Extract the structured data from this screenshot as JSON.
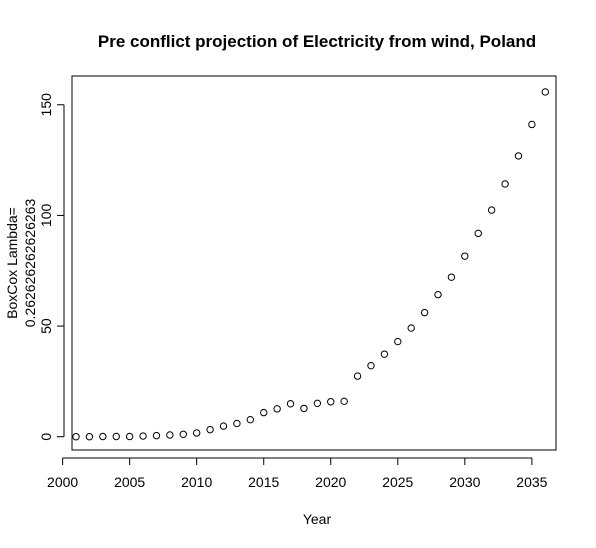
{
  "chart_data": {
    "type": "scatter",
    "title": "Pre conflict projection of Electricity from wind, Poland",
    "xlabel": "Year",
    "ylabel_lines": [
      "BoxCox Lambda=",
      "0.262626262626263"
    ],
    "xlim": [
      2000.7,
      2036.8
    ],
    "ylim": [
      -6,
      163
    ],
    "x_ticks": [
      2000,
      2005,
      2010,
      2015,
      2020,
      2025,
      2030,
      2035
    ],
    "y_ticks": [
      0,
      50,
      100,
      150
    ],
    "grid": false,
    "points": [
      {
        "x": 2001,
        "y": 0.0
      },
      {
        "x": 2002,
        "y": 0.0
      },
      {
        "x": 2003,
        "y": 0.1
      },
      {
        "x": 2004,
        "y": 0.1
      },
      {
        "x": 2005,
        "y": 0.1
      },
      {
        "x": 2006,
        "y": 0.3
      },
      {
        "x": 2007,
        "y": 0.5
      },
      {
        "x": 2008,
        "y": 0.8
      },
      {
        "x": 2009,
        "y": 1.1
      },
      {
        "x": 2010,
        "y": 1.7
      },
      {
        "x": 2011,
        "y": 3.2
      },
      {
        "x": 2012,
        "y": 4.8
      },
      {
        "x": 2013,
        "y": 6.0
      },
      {
        "x": 2014,
        "y": 7.7
      },
      {
        "x": 2015,
        "y": 10.9
      },
      {
        "x": 2016,
        "y": 12.6
      },
      {
        "x": 2017,
        "y": 14.9
      },
      {
        "x": 2018,
        "y": 12.8
      },
      {
        "x": 2019,
        "y": 15.1
      },
      {
        "x": 2020,
        "y": 15.8
      },
      {
        "x": 2021,
        "y": 16.0
      },
      {
        "x": 2022,
        "y": 27.4
      },
      {
        "x": 2023,
        "y": 32.1
      },
      {
        "x": 2024,
        "y": 37.3
      },
      {
        "x": 2025,
        "y": 43.0
      },
      {
        "x": 2026,
        "y": 49.1
      },
      {
        "x": 2027,
        "y": 56.1
      },
      {
        "x": 2028,
        "y": 64.2
      },
      {
        "x": 2029,
        "y": 72.1
      },
      {
        "x": 2030,
        "y": 81.6
      },
      {
        "x": 2031,
        "y": 91.9
      },
      {
        "x": 2032,
        "y": 102.4
      },
      {
        "x": 2033,
        "y": 114.2
      },
      {
        "x": 2034,
        "y": 126.9
      },
      {
        "x": 2035,
        "y": 141.1
      },
      {
        "x": 2036,
        "y": 155.8
      }
    ]
  }
}
